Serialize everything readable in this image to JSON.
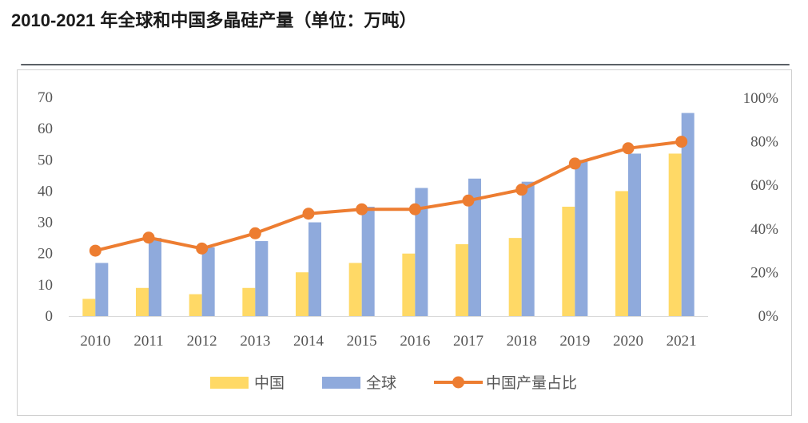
{
  "page": {
    "title": "2010-2021 年全球和中国多晶硅产量（单位：万吨）"
  },
  "chart_data": {
    "type": "bar",
    "title": "2010-2021 年全球和中国多晶硅产量（单位：万吨）",
    "categories": [
      "2010",
      "2011",
      "2012",
      "2013",
      "2014",
      "2015",
      "2016",
      "2017",
      "2018",
      "2019",
      "2020",
      "2021"
    ],
    "series": [
      {
        "name": "中国",
        "type": "bar",
        "axis": "left",
        "color": "#FFD966",
        "values": [
          5.5,
          9,
          7,
          9,
          14,
          17,
          20,
          23,
          25,
          35,
          40,
          52
        ]
      },
      {
        "name": "全球",
        "type": "bar",
        "axis": "left",
        "color": "#8FAADC",
        "values": [
          17,
          25,
          22,
          24,
          30,
          35,
          41,
          44,
          43,
          50,
          52,
          65
        ]
      },
      {
        "name": "中国产量占比",
        "type": "line",
        "axis": "right",
        "color": "#ED7D31",
        "values": [
          30,
          36,
          31,
          38,
          47,
          49,
          49,
          53,
          58,
          70,
          77,
          80
        ]
      }
    ],
    "left_axis": {
      "min": 0,
      "max": 70,
      "ticks": [
        "0",
        "10",
        "20",
        "30",
        "40",
        "50",
        "60",
        "70"
      ]
    },
    "right_axis": {
      "min": 0,
      "max": 100,
      "ticks": [
        "0%",
        "20%",
        "40%",
        "60%",
        "80%",
        "100%"
      ]
    },
    "legend": [
      "中国",
      "全球",
      "中国产量占比"
    ],
    "legend_position": "bottom",
    "grid": false
  }
}
